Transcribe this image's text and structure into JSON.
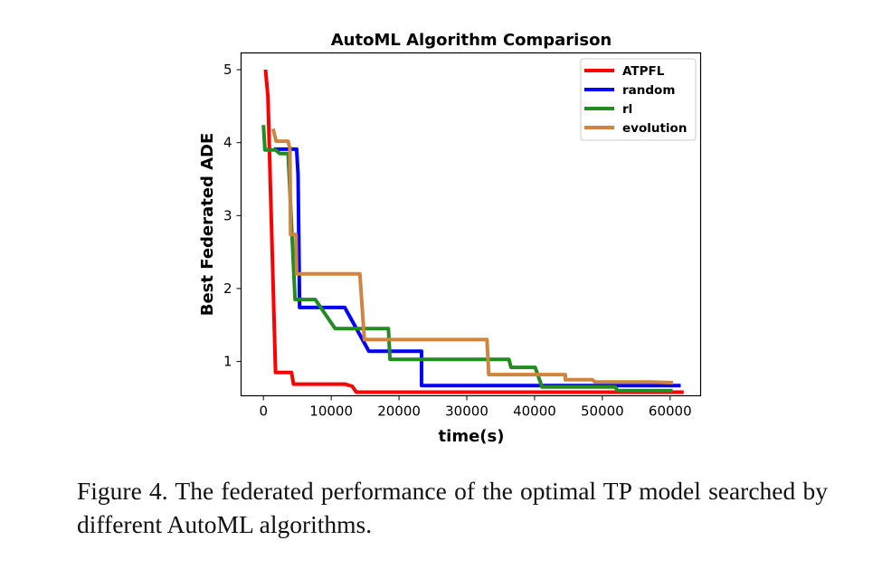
{
  "chart_data": {
    "type": "line",
    "title": "AutoML Algorithm Comparison",
    "xlabel": "time(s)",
    "ylabel": "Best Federated ADE",
    "xlim": [
      -3300,
      64500
    ],
    "ylim": [
      0.53,
      5.23
    ],
    "xticks": [
      0,
      10000,
      20000,
      30000,
      40000,
      50000,
      60000
    ],
    "yticks": [
      1,
      2,
      3,
      4,
      5
    ],
    "grid": false,
    "legend": "top-right",
    "series": [
      {
        "name": "ATPFL",
        "color": "#ff0000",
        "x": [
          300,
          670,
          1780,
          4130,
          4440,
          12000,
          13100,
          13700,
          62000
        ],
        "y": [
          5.0,
          4.63,
          0.85,
          0.85,
          0.69,
          0.69,
          0.66,
          0.58,
          0.58
        ]
      },
      {
        "name": "random",
        "color": "#0000ff",
        "x": [
          1560,
          4890,
          5110,
          5330,
          12000,
          15560,
          23330,
          23330,
          61560
        ],
        "y": [
          3.91,
          3.91,
          3.56,
          1.74,
          1.74,
          1.14,
          1.14,
          0.67,
          0.67
        ]
      },
      {
        "name": "rl",
        "color": "#228b22",
        "x": [
          0,
          220,
          1780,
          2440,
          3640,
          4670,
          7640,
          10580,
          18440,
          18670,
          36220,
          36530,
          40090,
          41110,
          51910,
          52220,
          60360
        ],
        "y": [
          4.24,
          3.9,
          3.9,
          3.85,
          3.85,
          1.85,
          1.85,
          1.45,
          1.45,
          1.03,
          1.03,
          0.92,
          0.92,
          0.65,
          0.65,
          0.6,
          0.6
        ]
      },
      {
        "name": "evolution",
        "color": "#cd853f",
        "x": [
          1420,
          1870,
          3640,
          3910,
          4000,
          4800,
          4890,
          14220,
          14890,
          32980,
          33240,
          44530,
          44530,
          48530,
          48900,
          56890,
          60440
        ],
        "y": [
          4.19,
          4.02,
          4.02,
          3.91,
          2.74,
          2.74,
          2.2,
          2.2,
          1.3,
          1.3,
          0.82,
          0.82,
          0.75,
          0.75,
          0.72,
          0.72,
          0.71
        ]
      }
    ]
  },
  "caption": "Figure 4.  The federated performance of the optimal TP model searched by different AutoML algorithms."
}
